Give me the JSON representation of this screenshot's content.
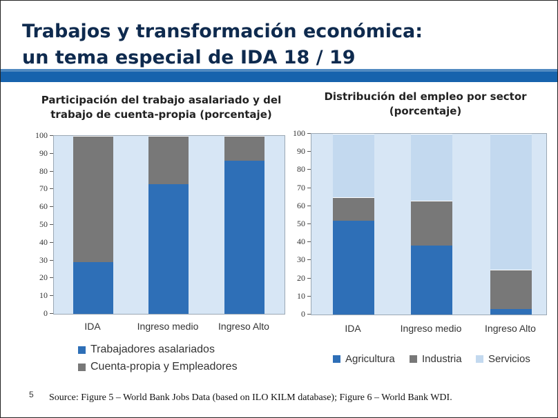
{
  "title": {
    "line1": "Trabajos y transformación económica:",
    "line2": "un tema especial de IDA 18 / 19"
  },
  "colors": {
    "title": "#0e2a4e",
    "band": "#1763ad",
    "plot_bg": "#d7e6f5",
    "blue": "#2e6fb7",
    "gray": "#787878",
    "light": "#c3d9ef"
  },
  "chart_data": [
    {
      "type": "bar",
      "stacked": true,
      "title": "Participación del trabajo asalariado y del trabajo de cuenta-propia (porcentaje)",
      "title_lines": [
        "Participación del trabajo asalariado y del",
        "trabajo de cuenta-propia (porcentaje)"
      ],
      "categories": [
        "IDA",
        "Ingreso medio",
        "Ingreso Alto"
      ],
      "ylim": [
        0,
        100
      ],
      "yticks": [
        "0",
        "10",
        "20",
        "30",
        "40",
        "50",
        "60",
        "70",
        "80",
        "90",
        "100"
      ],
      "series": [
        {
          "name": "Trabajadores asalariados",
          "values": [
            29,
            73,
            86
          ]
        },
        {
          "name": "Cuenta-propia y Empleadores",
          "values": [
            71,
            27,
            14
          ]
        }
      ],
      "legend": "bottom"
    },
    {
      "type": "bar",
      "stacked": true,
      "title": "Distribución del empleo por sector (porcentaje)",
      "title_lines": [
        "Distribución del empleo por sector",
        "(porcentaje)"
      ],
      "categories": [
        "IDA",
        "Ingreso medio",
        "Ingreso Alto"
      ],
      "ylim": [
        0,
        100
      ],
      "yticks": [
        "0",
        "10",
        "20",
        "30",
        "40",
        "50",
        "60",
        "70",
        "80",
        "90",
        "100"
      ],
      "series": [
        {
          "name": "Agricultura",
          "values": [
            52,
            38,
            3
          ]
        },
        {
          "name": "Industria",
          "values": [
            13,
            25,
            22
          ]
        },
        {
          "name": "Servicios",
          "values": [
            35,
            37,
            75
          ]
        }
      ],
      "legend": "bottom"
    }
  ],
  "footer": {
    "page_number": "5",
    "source": "Source: Figure 5 – World Bank Jobs Data (based on ILO KILM database); Figure 6 – World Bank WDI."
  }
}
